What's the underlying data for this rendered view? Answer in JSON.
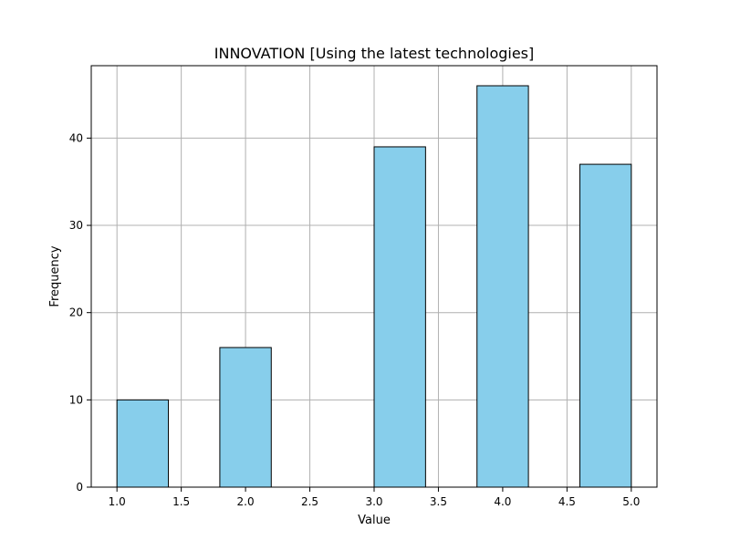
{
  "chart_data": {
    "type": "bar",
    "title": "INNOVATION [Using the latest technologies]",
    "xlabel": "Value",
    "ylabel": "Frequency",
    "xlim": [
      0.8,
      5.2
    ],
    "ylim": [
      0,
      48.3
    ],
    "xticks": [
      1.0,
      1.5,
      2.0,
      2.5,
      3.0,
      3.5,
      4.0,
      4.5,
      5.0
    ],
    "xtick_labels": [
      "1.0",
      "1.5",
      "2.0",
      "2.5",
      "3.0",
      "3.5",
      "4.0",
      "4.5",
      "5.0"
    ],
    "yticks": [
      0,
      10,
      20,
      30,
      40
    ],
    "ytick_labels": [
      "0",
      "10",
      "20",
      "30",
      "40"
    ],
    "bins": [
      {
        "x0": 1.0,
        "x1": 1.4,
        "value": 10
      },
      {
        "x0": 1.4,
        "x1": 1.8,
        "value": 0
      },
      {
        "x0": 1.8,
        "x1": 2.2,
        "value": 16
      },
      {
        "x0": 2.2,
        "x1": 2.6,
        "value": 0
      },
      {
        "x0": 2.6,
        "x1": 3.0,
        "value": 0
      },
      {
        "x0": 3.0,
        "x1": 3.4,
        "value": 39
      },
      {
        "x0": 3.4,
        "x1": 3.8,
        "value": 0
      },
      {
        "x0": 3.8,
        "x1": 4.2,
        "value": 46
      },
      {
        "x0": 4.2,
        "x1": 4.6,
        "value": 0
      },
      {
        "x0": 4.6,
        "x1": 5.0,
        "value": 37
      }
    ],
    "grid": true,
    "colors": {
      "bar_fill": "#87ceeb",
      "bar_edge": "#000000",
      "grid": "#b0b0b0",
      "axes": "#000000"
    }
  }
}
